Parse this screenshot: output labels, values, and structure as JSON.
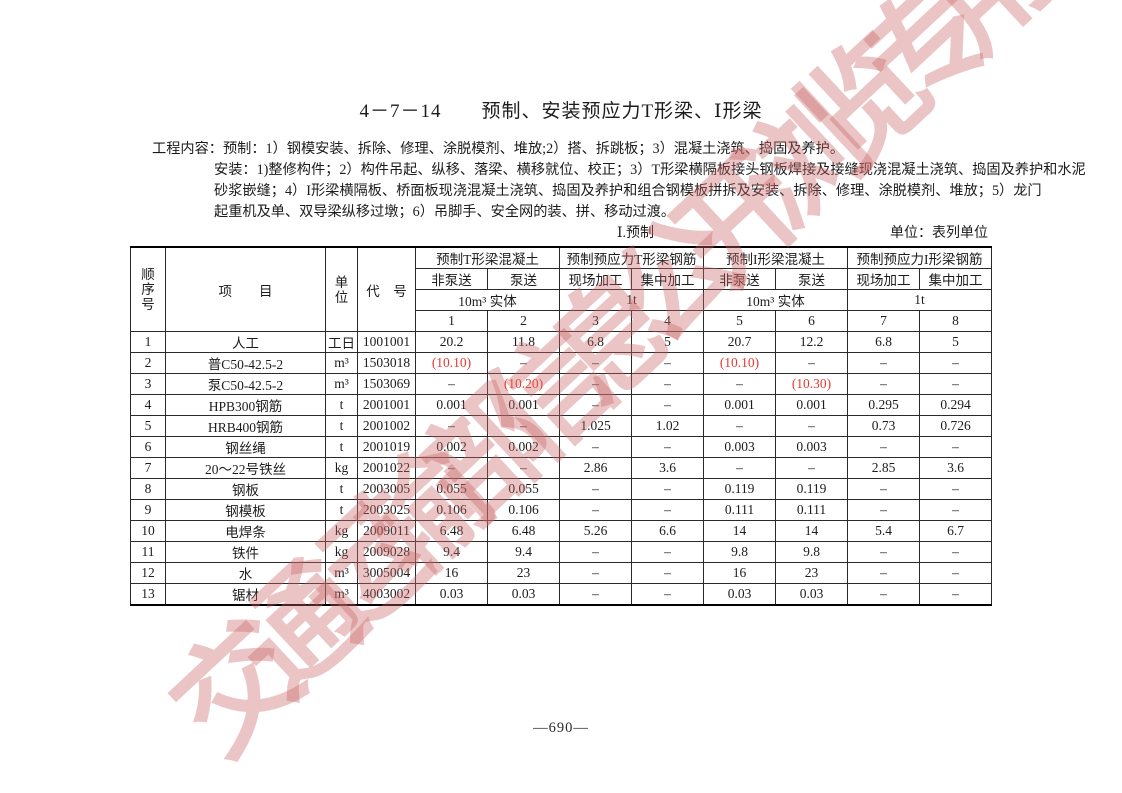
{
  "watermark": "交通运输部信息公开浏览专用",
  "title": "4－7－14　　预制、安装预应力T形梁、Ⅰ形梁",
  "work_content": {
    "line1": "工程内容：预制：1）钢模安装、拆除、修理、涂脱模剂、堆放;2）搭、拆跳板；3）混凝土浇筑、捣固及养护。",
    "line2": "安装：1)整修构件；2）构件吊起、纵移、落梁、横移就位、校正；3）T形梁横隔板接头钢板焊接及接缝现浇混凝土浇筑、捣固及养护和水泥",
    "line3": "砂浆嵌缝；4）I形梁横隔板、桥面板现浇混凝土浇筑、捣固及养护和组合钢模板拼拆及安装、拆除、修理、涂脱模剂、堆放；5）龙门",
    "line4": "起重机及单、双导梁纵移过墩；6）吊脚手、安全网的装、拼、移动过渡。"
  },
  "section_label": "Ⅰ.预制",
  "unit_note": "单位：表列单位",
  "table": {
    "corner": {
      "col_no": "顺\n序\n号",
      "item": "项　　目",
      "unit": "单\n位",
      "code": "代　号"
    },
    "groups": [
      {
        "title": "预制T形梁混凝土",
        "subs": [
          "非泵送",
          "泵送"
        ],
        "unit": "10m³ 实体"
      },
      {
        "title": "预制预应力T形梁钢筋",
        "subs": [
          "现场加工",
          "集中加工"
        ],
        "unit": "1t"
      },
      {
        "title": "预制I形梁混凝土",
        "subs": [
          "非泵送",
          "泵送"
        ],
        "unit": "10m³ 实体"
      },
      {
        "title": "预制预应力I形梁钢筋",
        "subs": [
          "现场加工",
          "集中加工"
        ],
        "unit": "1t"
      }
    ],
    "col_numbers": [
      "1",
      "2",
      "3",
      "4",
      "5",
      "6",
      "7",
      "8"
    ],
    "rows": [
      {
        "no": "1",
        "item": "人工",
        "unit": "工日",
        "code": "1001001",
        "values": [
          "20.2",
          "11.8",
          "6.8",
          "5",
          "20.7",
          "12.2",
          "6.8",
          "5"
        ],
        "red_cols": []
      },
      {
        "no": "2",
        "item": "普C50-42.5-2",
        "unit": "m³",
        "code": "1503018",
        "values": [
          "(10.10)",
          "–",
          "–",
          "–",
          "(10.10)",
          "–",
          "–",
          "–"
        ],
        "red_cols": [
          1,
          5
        ]
      },
      {
        "no": "3",
        "item": "泵C50-42.5-2",
        "unit": "m³",
        "code": "1503069",
        "values": [
          "–",
          "(10.20)",
          "–",
          "–",
          "–",
          "(10.30)",
          "–",
          "–"
        ],
        "red_cols": [
          2,
          6
        ]
      },
      {
        "no": "4",
        "item": "HPB300钢筋",
        "unit": "t",
        "code": "2001001",
        "values": [
          "0.001",
          "0.001",
          "–",
          "–",
          "0.001",
          "0.001",
          "0.295",
          "0.294"
        ],
        "red_cols": []
      },
      {
        "no": "5",
        "item": "HRB400钢筋",
        "unit": "t",
        "code": "2001002",
        "values": [
          "–",
          "–",
          "1.025",
          "1.02",
          "–",
          "–",
          "0.73",
          "0.726"
        ],
        "red_cols": []
      },
      {
        "no": "6",
        "item": "钢丝绳",
        "unit": "t",
        "code": "2001019",
        "values": [
          "0.002",
          "0.002",
          "–",
          "–",
          "0.003",
          "0.003",
          "–",
          "–"
        ],
        "red_cols": []
      },
      {
        "no": "7",
        "item": "20～22号铁丝",
        "unit": "kg",
        "code": "2001022",
        "values": [
          "–",
          "–",
          "2.86",
          "3.6",
          "–",
          "–",
          "2.85",
          "3.6"
        ],
        "red_cols": []
      },
      {
        "no": "8",
        "item": "钢板",
        "unit": "t",
        "code": "2003005",
        "values": [
          "0.055",
          "0.055",
          "–",
          "–",
          "0.119",
          "0.119",
          "–",
          "–"
        ],
        "red_cols": []
      },
      {
        "no": "9",
        "item": "钢模板",
        "unit": "t",
        "code": "2003025",
        "values": [
          "0.106",
          "0.106",
          "–",
          "–",
          "0.111",
          "0.111",
          "–",
          "–"
        ],
        "red_cols": []
      },
      {
        "no": "10",
        "item": "电焊条",
        "unit": "kg",
        "code": "2009011",
        "values": [
          "6.48",
          "6.48",
          "5.26",
          "6.6",
          "14",
          "14",
          "5.4",
          "6.7"
        ],
        "red_cols": []
      },
      {
        "no": "11",
        "item": "铁件",
        "unit": "kg",
        "code": "2009028",
        "values": [
          "9.4",
          "9.4",
          "–",
          "–",
          "9.8",
          "9.8",
          "–",
          "–"
        ],
        "red_cols": []
      },
      {
        "no": "12",
        "item": "水",
        "unit": "m³",
        "code": "3005004",
        "values": [
          "16",
          "23",
          "–",
          "–",
          "16",
          "23",
          "–",
          "–"
        ],
        "red_cols": []
      },
      {
        "no": "13",
        "item": "锯材",
        "unit": "m³",
        "code": "4003002",
        "values": [
          "0.03",
          "0.03",
          "–",
          "–",
          "0.03",
          "0.03",
          "–",
          "–"
        ],
        "red_cols": []
      }
    ]
  },
  "page_number": "—690—",
  "colors": {
    "highlight_red": "#e43a2c",
    "watermark_pink": "rgba(202,102,102,0.38)",
    "text": "#1c1c1c"
  }
}
